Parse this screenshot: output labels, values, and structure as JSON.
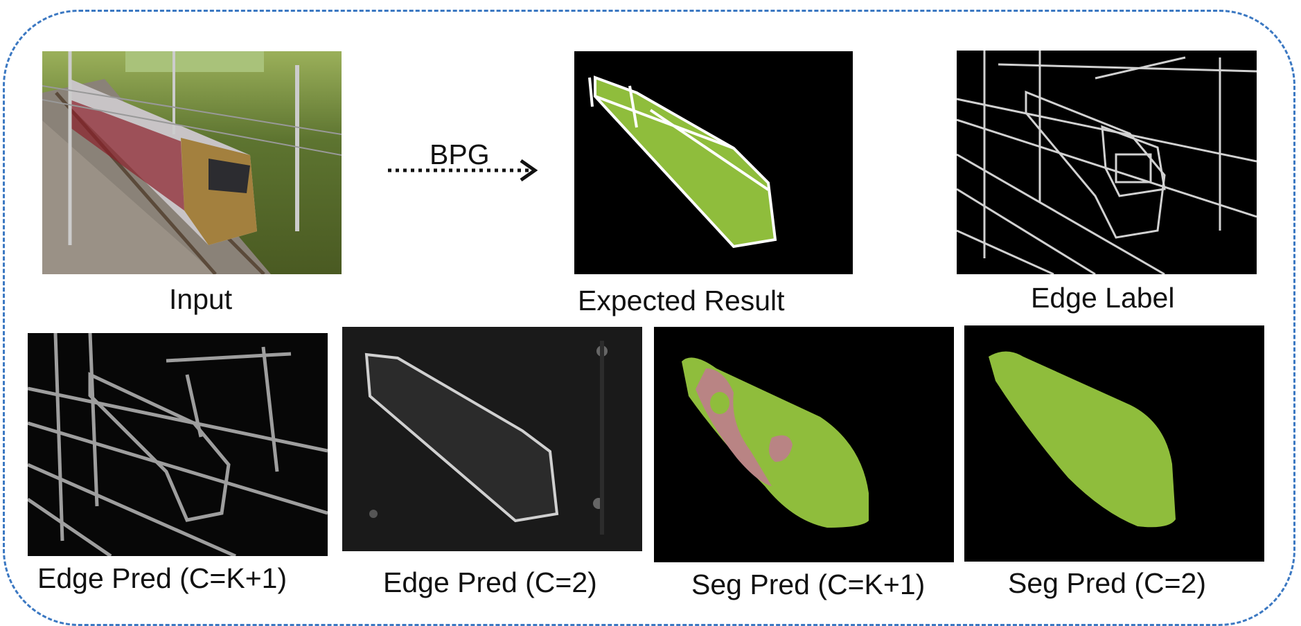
{
  "arrow": {
    "label": "BPG"
  },
  "panels": {
    "input": {
      "caption": "Input"
    },
    "expected": {
      "caption": "Expected Result"
    },
    "edge_label": {
      "caption": "Edge Label"
    },
    "edge_pred_k1": {
      "caption": "Edge Pred (C=K+1)"
    },
    "edge_pred_2": {
      "caption": "Edge Pred (C=2)"
    },
    "seg_pred_k1": {
      "caption": "Seg Pred (C=K+1)"
    },
    "seg_pred_2": {
      "caption": "Seg Pred (C=2)"
    }
  },
  "colors": {
    "frame": "#3b78c2",
    "segment_green": "#8fbd3c",
    "segment_pink": "#b98484",
    "background": "#000000"
  }
}
